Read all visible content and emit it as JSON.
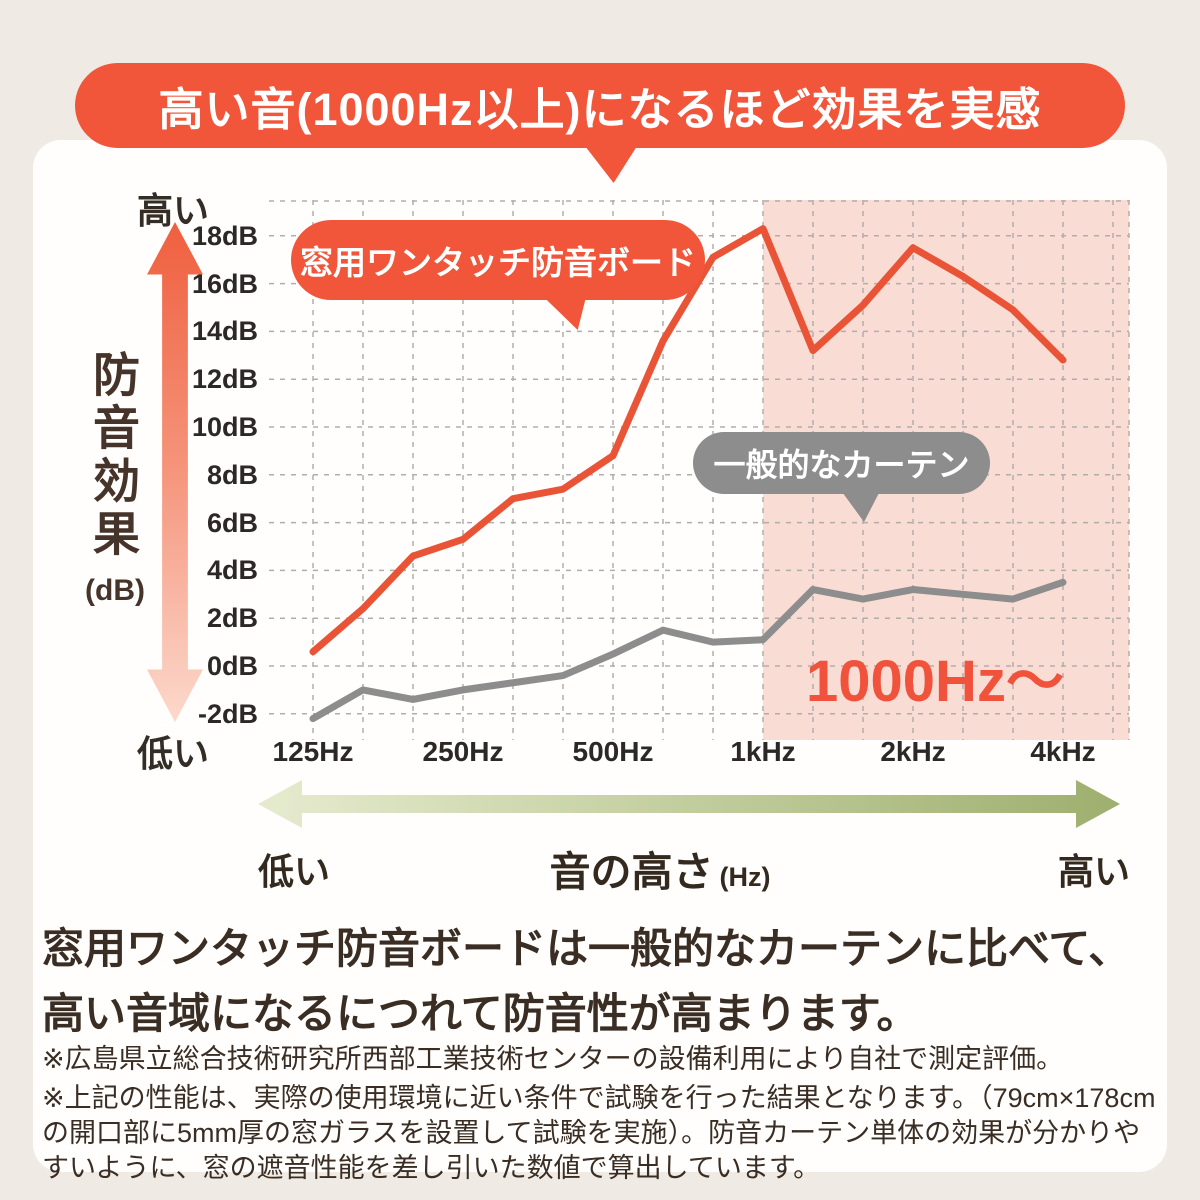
{
  "banner": {
    "text": "高い音(1000Hz以上)になるほど効果を実感"
  },
  "y_axis": {
    "title": "防音効果",
    "unit": "(dB)",
    "high_label": "高い",
    "low_label": "低い"
  },
  "callouts": {
    "board": "窓用ワンタッチ防音ボード",
    "curtain": "一般的なカーテン"
  },
  "freq_axis": {
    "low_label": "低い",
    "title": "音の高さ",
    "unit": "(Hz)",
    "high_label": "高い"
  },
  "headline": "窓用ワンタッチ防音ボードは一般的なカーテンに比べて、高い音域になるにつれて防音性が高まります。",
  "notes": [
    "※広島県立総合技術研究所西部工業技術センターの設備利用により自社で測定評価。",
    "※上記の性能は、実際の使用環境に近い条件で試験を行った結果となります。（79cm×178cmの開口部に5mm厚の窓ガラスを設置して試験を実施）。防音カーテン単体の効果が分かりやすいように、窓の遮音性能を差し引いた数値で算出しています。"
  ],
  "colors": {
    "accent_orange": "#f2563a",
    "line_orange": "#e95437",
    "line_gray": "#8d8d8d",
    "highlight_pink": "#f9dcd4",
    "grid": "#b3adaa",
    "arrow_green_light": "#e6ebce",
    "arrow_green_dark": "#9eaf6e",
    "text_dark": "#3a2d23",
    "page_bg": "#efebe4"
  },
  "chart_data": {
    "type": "line",
    "x_scale": "log (1/3-octave bands)",
    "frequencies_hz": [
      125,
      160,
      200,
      250,
      315,
      400,
      500,
      630,
      800,
      1000,
      1250,
      1600,
      2000,
      2500,
      3150,
      4000
    ],
    "series": [
      {
        "name": "窓用ワンタッチ防音ボード",
        "color": "#e95437",
        "values": [
          0.6,
          2.4,
          4.6,
          5.3,
          7.0,
          7.4,
          8.8,
          13.6,
          17.1,
          18.3,
          13.2,
          15.1,
          17.5,
          16.3,
          14.9,
          12.8
        ]
      },
      {
        "name": "一般的なカーテン",
        "color": "#8d8d8d",
        "values": [
          -2.2,
          -1.0,
          -1.4,
          -1.0,
          -0.7,
          -0.4,
          0.5,
          1.5,
          1.0,
          1.1,
          3.2,
          2.8,
          3.2,
          3.0,
          2.8,
          3.5
        ]
      }
    ],
    "ylabel": "防音効果 (dB)",
    "xlabel": "音の高さ (Hz)",
    "ylim": [
      -2,
      20
    ],
    "grid": true,
    "y_ticks": [
      {
        "value": 18,
        "label": "18dB"
      },
      {
        "value": 16,
        "label": "16dB"
      },
      {
        "value": 14,
        "label": "14dB"
      },
      {
        "value": 12,
        "label": "12dB"
      },
      {
        "value": 10,
        "label": "10dB"
      },
      {
        "value": 8,
        "label": "8dB"
      },
      {
        "value": 6,
        "label": "6dB"
      },
      {
        "value": 4,
        "label": "4dB"
      },
      {
        "value": 2,
        "label": "2dB"
      },
      {
        "value": 0,
        "label": "0dB"
      },
      {
        "value": -2,
        "label": "-2dB"
      }
    ],
    "x_ticks": [
      {
        "hz": 125,
        "label": "125Hz"
      },
      {
        "hz": 250,
        "label": "250Hz"
      },
      {
        "hz": 500,
        "label": "500Hz"
      },
      {
        "hz": 1000,
        "label": "1kHz"
      },
      {
        "hz": 2000,
        "label": "2kHz"
      },
      {
        "hz": 4000,
        "label": "4kHz"
      }
    ],
    "highlight_region": {
      "from_hz": 1000,
      "label": "1000Hz〜"
    }
  }
}
